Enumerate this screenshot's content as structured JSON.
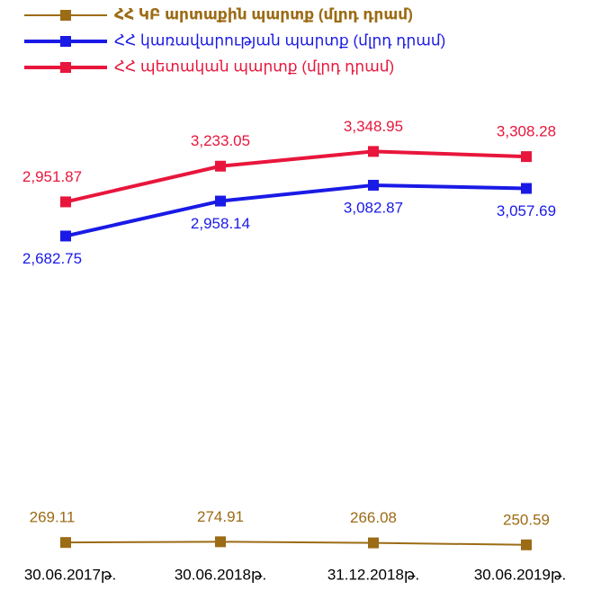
{
  "chart_data": {
    "type": "line",
    "categories": [
      "30.06.2017թ.",
      "30.06.2018թ.",
      "31.12.2018թ.",
      "30.06.2019թ."
    ],
    "ylim": [
      150,
      3550
    ],
    "legend": "top-left",
    "series": [
      {
        "name": "ՀՀ ԿԲ արտաքին պարտք (մլրդ դրամ)",
        "color": "#9c6b15",
        "values": [
          269.11,
          274.91,
          266.08,
          250.59
        ],
        "value_labels": [
          "269.11",
          "274.91",
          "266.08",
          "250.59"
        ]
      },
      {
        "name": "ՀՀ կառավարության պարտք (մլրդ դրամ)",
        "color": "#1a1ae6",
        "values": [
          2682.75,
          2958.14,
          3082.87,
          3057.69
        ],
        "value_labels": [
          "2,682.75",
          "2,958.14",
          "3,082.87",
          "3,057.69"
        ]
      },
      {
        "name": "ՀՀ պետական պարտք (մլրդ դրամ)",
        "color": "#e8163c",
        "values": [
          2951.87,
          3233.05,
          3348.95,
          3308.28
        ],
        "value_labels": [
          "2,951.87",
          "3,233.05",
          "3,348.95",
          "3,308.28"
        ]
      }
    ]
  }
}
